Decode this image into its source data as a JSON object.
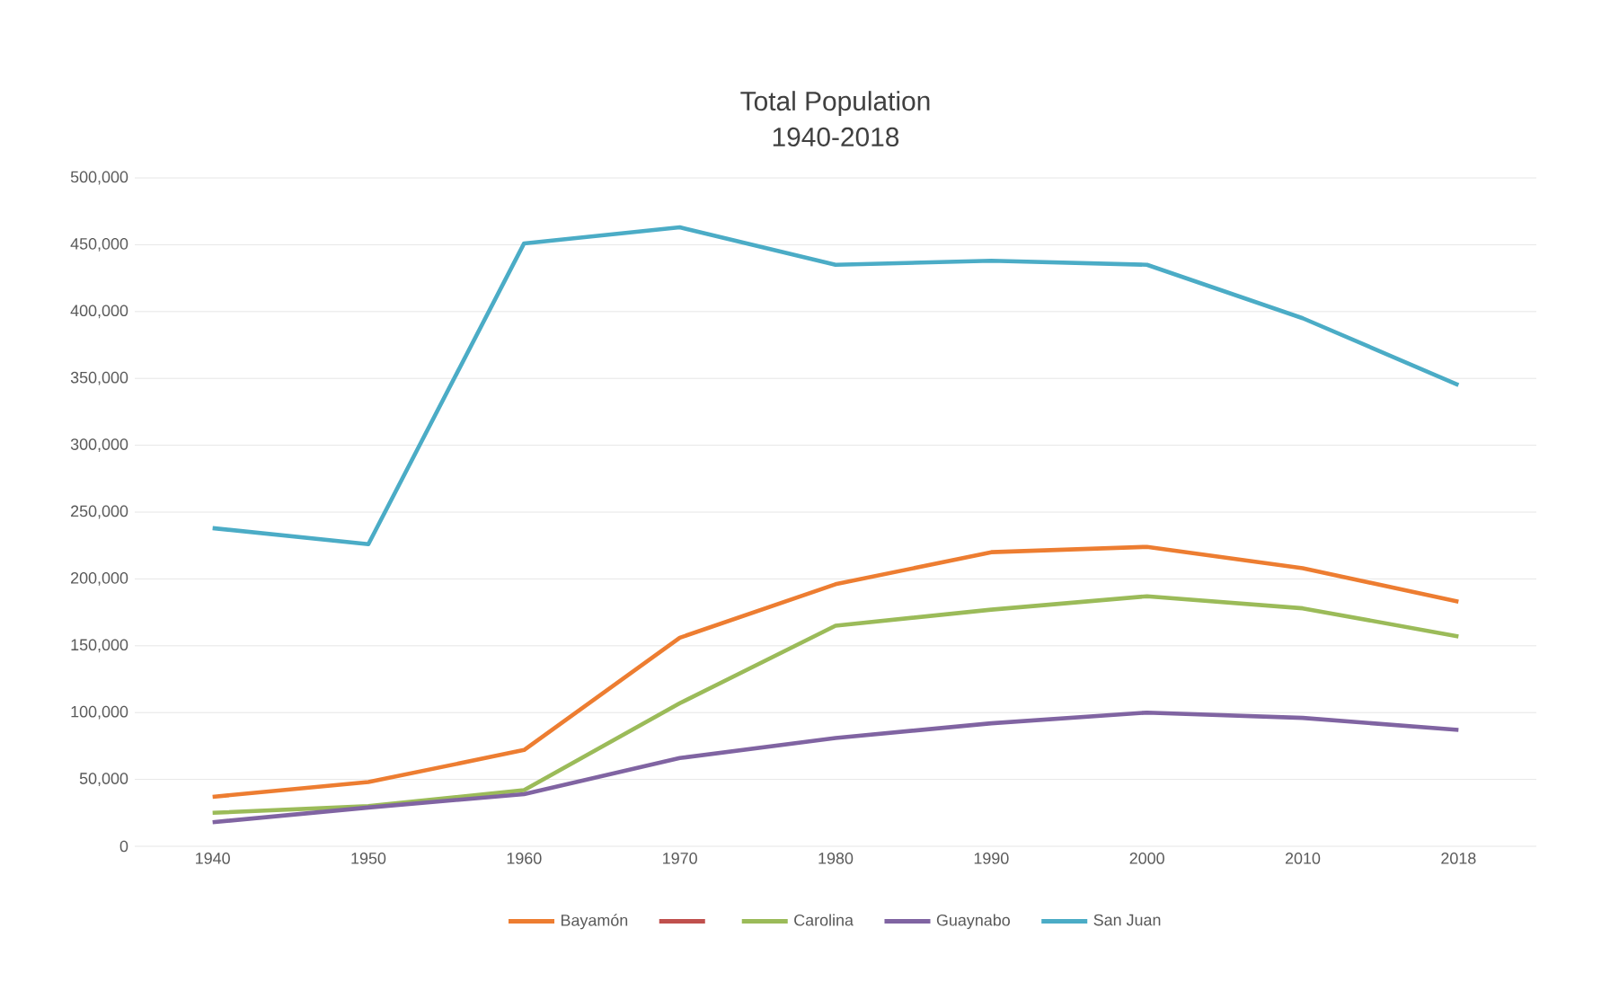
{
  "chart_data": {
    "type": "line",
    "title": "Total Population",
    "subtitle": "1940-2018",
    "categories": [
      "1940",
      "1950",
      "1960",
      "1970",
      "1980",
      "1990",
      "2000",
      "2010",
      "2018"
    ],
    "series": [
      {
        "name": "Bayamón",
        "color": "#ed7d31",
        "values": [
          37000,
          48000,
          72000,
          156000,
          196000,
          220000,
          224000,
          208000,
          183000
        ]
      },
      {
        "color": "#c0504d",
        "values": [
          null,
          null,
          null,
          null,
          null,
          null,
          null,
          null,
          null
        ]
      },
      {
        "name": "Carolina",
        "color": "#9bbb59",
        "values": [
          25000,
          30000,
          42000,
          107000,
          165000,
          177000,
          187000,
          178000,
          157000
        ]
      },
      {
        "name": "Guaynabo",
        "color": "#8064a2",
        "values": [
          18000,
          29000,
          39000,
          66000,
          81000,
          92000,
          100000,
          96000,
          87000
        ]
      },
      {
        "name": "San Juan",
        "color": "#4bacc6",
        "values": [
          238000,
          226000,
          451000,
          463000,
          435000,
          438000,
          435000,
          395000,
          345000
        ]
      }
    ],
    "ylim": [
      0,
      500000
    ],
    "yticks": [
      {
        "value": 0,
        "label": "0"
      },
      {
        "value": 50000,
        "label": "50,000"
      },
      {
        "value": 100000,
        "label": "100,000"
      },
      {
        "value": 150000,
        "label": "150,000"
      },
      {
        "value": 200000,
        "label": "200,000"
      },
      {
        "value": 250000,
        "label": "250,000"
      },
      {
        "value": 300000,
        "label": "300,000"
      },
      {
        "value": 350000,
        "label": "350,000"
      },
      {
        "value": 400000,
        "label": "400,000"
      },
      {
        "value": 450000,
        "label": "450,000"
      },
      {
        "value": 500000,
        "label": "500,000"
      }
    ],
    "grid": "y",
    "legend": "bottom",
    "line_style": "solid",
    "marker": "none"
  }
}
